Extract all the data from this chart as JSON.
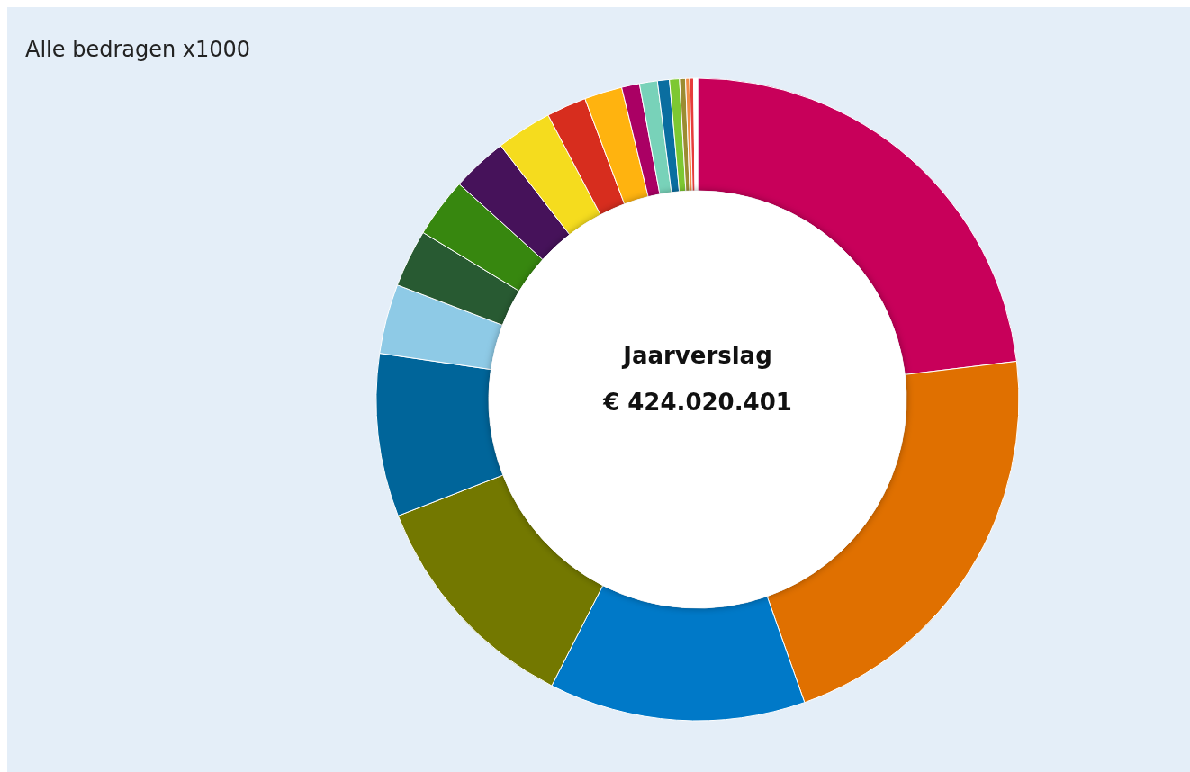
{
  "chart_data": {
    "type": "donut",
    "title": "Jaarverslag",
    "subtitle": "€ 424.020.401",
    "annotations": [
      "Alle bedragen x1000"
    ],
    "categories": [
      null,
      null,
      null,
      null,
      null,
      null,
      null,
      null,
      null,
      null,
      null,
      null,
      null,
      null,
      null,
      null,
      null,
      null,
      null,
      null
    ],
    "values": [
      23.1,
      21.5,
      12.9,
      11.6,
      8.2,
      3.5,
      2.9,
      3.0,
      2.8,
      2.8,
      2.0,
      1.9,
      0.9,
      0.9,
      0.6,
      0.5,
      0.3,
      0.2,
      0.2,
      0.2
    ],
    "colors": [
      "#c8005a",
      "#e07000",
      "#0079c8",
      "#737800",
      "#00659a",
      "#8ecae6",
      "#285a32",
      "#37870f",
      "#46125a",
      "#f5dc1e",
      "#d72d1e",
      "#ffb30f",
      "#aa0064",
      "#78d2b9",
      "#0a6ea0",
      "#7dc832",
      "#9b8c32",
      "#f08c46",
      "#e63c3c",
      "#ffffff"
    ],
    "grid": false
  }
}
